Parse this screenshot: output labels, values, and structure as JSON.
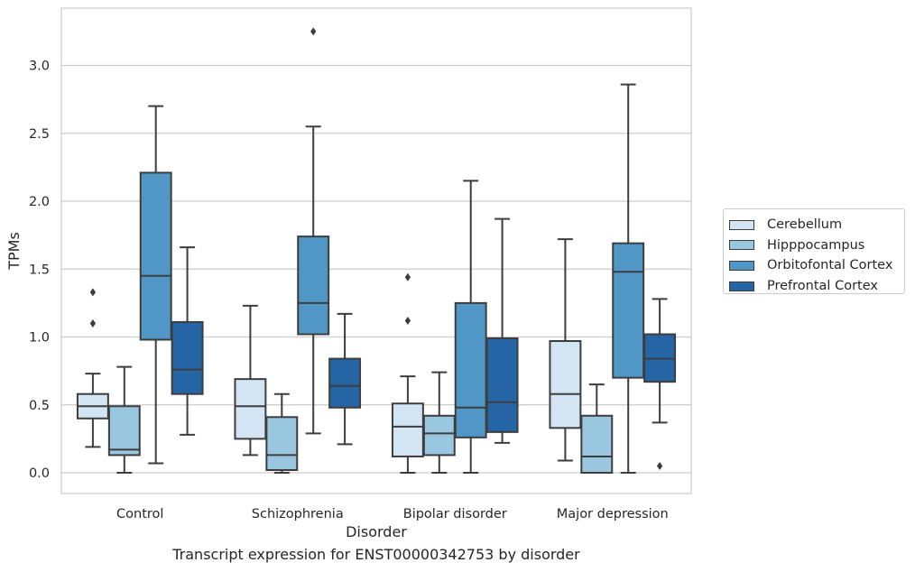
{
  "chart_data": {
    "type": "box",
    "title": "",
    "caption": "Transcript expression for ENST00000342753 by disorder",
    "xlabel": "Disorder",
    "ylabel": "TPMs",
    "ylim": [
      -0.16,
      3.43
    ],
    "yticks": [
      "0.0",
      "0.5",
      "1.0",
      "1.5",
      "2.0",
      "2.5",
      "3.0"
    ],
    "grid": "horizontal",
    "legend_placement": "right",
    "categories": [
      "Control",
      "Schizophrenia",
      "Bipolar disorder",
      "Major depression"
    ],
    "series": [
      {
        "name": "Cerebellum",
        "color": "#d3e4f3",
        "boxes": [
          {
            "min": 0.19,
            "q1": 0.4,
            "median": 0.49,
            "q3": 0.58,
            "max": 0.73,
            "outliers": [
              1.33,
              1.1
            ]
          },
          {
            "min": 0.13,
            "q1": 0.25,
            "median": 0.49,
            "q3": 0.69,
            "max": 1.23,
            "outliers": []
          },
          {
            "min": 0.0,
            "q1": 0.12,
            "median": 0.34,
            "q3": 0.51,
            "max": 0.71,
            "outliers": [
              1.44,
              1.12
            ]
          },
          {
            "min": 0.09,
            "q1": 0.33,
            "median": 0.58,
            "q3": 0.97,
            "max": 1.72,
            "outliers": []
          }
        ]
      },
      {
        "name": "Hipppocampus",
        "color": "#9ac7e0",
        "boxes": [
          {
            "min": 0.0,
            "q1": 0.13,
            "median": 0.17,
            "q3": 0.49,
            "max": 0.78,
            "outliers": []
          },
          {
            "min": 0.0,
            "q1": 0.02,
            "median": 0.13,
            "q3": 0.41,
            "max": 0.58,
            "outliers": []
          },
          {
            "min": 0.0,
            "q1": 0.13,
            "median": 0.29,
            "q3": 0.42,
            "max": 0.74,
            "outliers": []
          },
          {
            "min": 0.0,
            "q1": 0.0,
            "median": 0.12,
            "q3": 0.42,
            "max": 0.65,
            "outliers": []
          }
        ]
      },
      {
        "name": "Orbitofontal Cortex",
        "color": "#5097c8",
        "boxes": [
          {
            "min": 0.07,
            "q1": 0.98,
            "median": 1.45,
            "q3": 2.21,
            "max": 2.7,
            "outliers": []
          },
          {
            "min": 0.29,
            "q1": 1.02,
            "median": 1.25,
            "q3": 1.74,
            "max": 2.55,
            "outliers": [
              3.25
            ]
          },
          {
            "min": 0.0,
            "q1": 0.26,
            "median": 0.48,
            "q3": 1.25,
            "max": 2.15,
            "outliers": []
          },
          {
            "min": 0.0,
            "q1": 0.7,
            "median": 1.48,
            "q3": 1.69,
            "max": 2.86,
            "outliers": []
          }
        ]
      },
      {
        "name": "Prefrontal Cortex",
        "color": "#2565a6",
        "boxes": [
          {
            "min": 0.28,
            "q1": 0.58,
            "median": 0.76,
            "q3": 1.11,
            "max": 1.66,
            "outliers": []
          },
          {
            "min": 0.21,
            "q1": 0.48,
            "median": 0.64,
            "q3": 0.84,
            "max": 1.17,
            "outliers": []
          },
          {
            "min": 0.22,
            "q1": 0.3,
            "median": 0.52,
            "q3": 0.99,
            "max": 1.87,
            "outliers": []
          },
          {
            "min": 0.37,
            "q1": 0.67,
            "median": 0.84,
            "q3": 1.02,
            "max": 1.28,
            "outliers": [
              0.05
            ]
          }
        ]
      }
    ]
  }
}
